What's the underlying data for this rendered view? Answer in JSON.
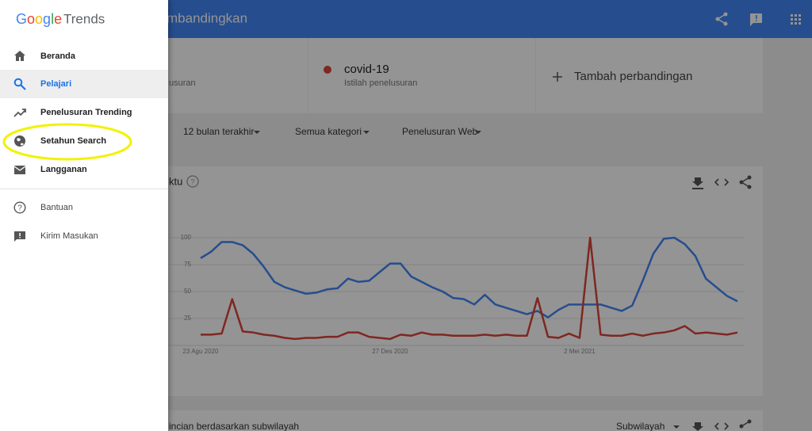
{
  "header": {
    "title": "mbandingkan"
  },
  "term_cards": [
    {
      "subtitle": "usuran"
    },
    {
      "subtitle": "Istilah penelusuran"
    }
  ],
  "add_comparison": "Tambah perbandingan",
  "filters": [
    "12 bulan terakhir",
    "Semua kategori",
    "Penelusuran Web"
  ],
  "chart_card": {
    "title": "ktu"
  },
  "chart_data": {
    "type": "line",
    "categories": [
      "23 Agu 2020",
      null,
      null,
      null,
      null,
      null,
      null,
      null,
      null,
      null,
      null,
      null,
      null,
      null,
      null,
      null,
      null,
      null,
      "27 Des 2020",
      null,
      null,
      null,
      null,
      null,
      null,
      null,
      null,
      null,
      null,
      null,
      null,
      null,
      null,
      null,
      null,
      null,
      "2 Mei 2021",
      null,
      null,
      null,
      null,
      null,
      null,
      null,
      null,
      null,
      null,
      null,
      null,
      null,
      null,
      null
    ],
    "series": [
      {
        "color": "#4285f4",
        "values": [
          81,
          87,
          96,
          96,
          93,
          85,
          73,
          59,
          54,
          51,
          48,
          49,
          52,
          53,
          62,
          59,
          60,
          68,
          76,
          76,
          64,
          59,
          54,
          50,
          44,
          43,
          38,
          47,
          38,
          35,
          32,
          29,
          32,
          26,
          33,
          38,
          38,
          38,
          38,
          35,
          32,
          37,
          60,
          85,
          99,
          100,
          94,
          83,
          62,
          54,
          46,
          41
        ]
      },
      {
        "name": "covid-19",
        "color": "#db4437",
        "values": [
          10,
          10,
          11,
          43,
          13,
          12,
          10,
          9,
          7,
          6,
          7,
          7,
          8,
          8,
          12,
          12,
          8,
          7,
          6,
          10,
          9,
          12,
          10,
          10,
          9,
          9,
          9,
          10,
          9,
          10,
          9,
          9,
          44,
          8,
          7,
          11,
          7,
          100,
          10,
          9,
          9,
          11,
          9,
          11,
          12,
          14,
          18,
          11,
          12,
          11,
          10,
          12
        ]
      }
    ],
    "ylim": [
      0,
      100
    ],
    "yticks": [
      25,
      50,
      75,
      100
    ],
    "grid": true
  },
  "bottom_card": {
    "title": "incian berdasarkan subwilayah",
    "dropdown": "Subwilayah"
  },
  "drawer": {
    "logo": {
      "brand": "Google",
      "product": "Trends"
    },
    "items": [
      {
        "label": "Beranda"
      },
      {
        "label": "Pelajari",
        "active": true
      },
      {
        "label": "Penelusuran Trending"
      },
      {
        "label": "Setahun Search",
        "highlighted": true
      },
      {
        "label": "Langganan"
      }
    ],
    "help_items": [
      {
        "label": "Bantuan"
      },
      {
        "label": "Kirim Masukan"
      }
    ]
  }
}
